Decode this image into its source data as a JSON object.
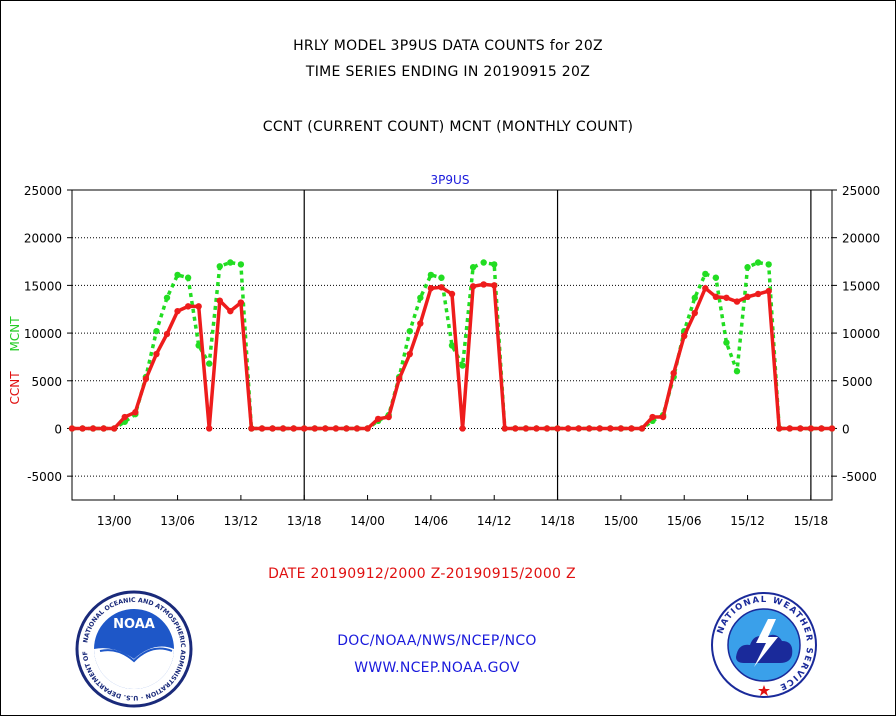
{
  "titles": {
    "line1": "HRLY MODEL 3P9US DATA COUNTS for 20Z",
    "line2": "TIME SERIES ENDING IN 20190915 20Z",
    "line3": "CCNT (CURRENT COUNT) MCNT (MONTHLY COUNT)"
  },
  "footer": {
    "date_range": "DATE 20190912/2000 Z-20190915/2000 Z",
    "doc": "DOC/NOAA/NWS/NCEP/NCO",
    "url": "WWW.NCEP.NOAA.GOV"
  },
  "logos": {
    "noaa": "NOAA",
    "noaa_ring_text": "NATIONAL OCEANIC AND ATMOSPHERIC ADMINISTRATION · U.S. DEPARTMENT OF COMMERCE",
    "nws_ring_text": "NATIONAL WEATHER SERVICE"
  },
  "colors": {
    "ccnt": "#ee1c1c",
    "mcnt": "#22dd22",
    "text_blue": "#1a1adc",
    "text_red": "#e01010"
  },
  "chart_data": {
    "type": "line",
    "title": "3P9US",
    "ylabel_left_1": "CCNT",
    "ylabel_left_2": "MCNT",
    "ylim": [
      -7500,
      25000
    ],
    "yticks": [
      25000,
      20000,
      15000,
      10000,
      5000,
      0,
      -5000
    ],
    "x_tick_labels": [
      "13/00",
      "13/06",
      "13/12",
      "13/18",
      "14/00",
      "14/06",
      "14/12",
      "14/18",
      "15/00",
      "15/06",
      "15/12",
      "15/18"
    ],
    "x_tick_hours": [
      4,
      10,
      16,
      22,
      28,
      34,
      40,
      46,
      52,
      58,
      64,
      70
    ],
    "day_boundaries_hours": [
      22,
      46,
      70
    ],
    "x_range_hours": [
      0,
      72
    ],
    "series": [
      {
        "name": "CCNT",
        "color": "#ee1c1c",
        "style": "solid",
        "x": [
          0,
          1,
          2,
          3,
          4,
          5,
          6,
          7,
          8,
          9,
          10,
          11,
          12,
          13,
          14,
          15,
          16,
          17,
          18,
          19,
          20,
          21,
          22,
          23,
          24,
          25,
          26,
          27,
          28,
          29,
          30,
          31,
          32,
          33,
          34,
          35,
          36,
          37,
          38,
          39,
          40,
          41,
          42,
          43,
          44,
          45,
          46,
          47,
          48,
          49,
          50,
          51,
          52,
          53,
          54,
          55,
          56,
          57,
          58,
          59,
          60,
          61,
          62,
          63,
          64,
          65,
          66,
          67,
          68,
          69,
          70,
          71,
          72
        ],
        "values": [
          0,
          0,
          0,
          0,
          0,
          1200,
          1700,
          5200,
          7800,
          9900,
          12300,
          12800,
          12800,
          0,
          13400,
          12300,
          13200,
          0,
          0,
          0,
          0,
          0,
          0,
          0,
          0,
          0,
          0,
          0,
          0,
          1000,
          1200,
          5200,
          7800,
          11000,
          14700,
          14800,
          14100,
          0,
          14900,
          15100,
          15000,
          0,
          0,
          0,
          0,
          0,
          0,
          0,
          0,
          0,
          0,
          0,
          0,
          0,
          0,
          1200,
          1200,
          5800,
          9700,
          12100,
          14700,
          13800,
          13700,
          13300,
          13800,
          14100,
          14400,
          0,
          0,
          0,
          0,
          0,
          0
        ]
      },
      {
        "name": "MCNT",
        "color": "#22dd22",
        "style": "dotted",
        "x": [
          0,
          1,
          2,
          3,
          4,
          5,
          6,
          7,
          8,
          9,
          10,
          11,
          12,
          13,
          14,
          15,
          16,
          17,
          18,
          19,
          20,
          21,
          22,
          23,
          24,
          25,
          26,
          27,
          28,
          29,
          30,
          31,
          32,
          33,
          34,
          35,
          36,
          37,
          38,
          39,
          40,
          41,
          42,
          43,
          44,
          45,
          46,
          47,
          48,
          49,
          50,
          51,
          52,
          53,
          54,
          55,
          56,
          57,
          58,
          59,
          60,
          61,
          62,
          63,
          64,
          65,
          66,
          67,
          68,
          69,
          70,
          71,
          72
        ],
        "values": [
          0,
          0,
          0,
          0,
          0,
          700,
          1500,
          5400,
          10200,
          13700,
          16100,
          15800,
          8700,
          6800,
          17000,
          17400,
          17200,
          0,
          0,
          0,
          0,
          0,
          0,
          0,
          0,
          0,
          0,
          0,
          0,
          800,
          1400,
          5400,
          10200,
          13700,
          16100,
          15800,
          8700,
          6600,
          16900,
          17400,
          17200,
          0,
          0,
          0,
          0,
          0,
          0,
          0,
          0,
          0,
          0,
          0,
          0,
          0,
          0,
          800,
          1400,
          5400,
          10200,
          13700,
          16200,
          15800,
          9000,
          6000,
          16900,
          17400,
          17200,
          0,
          0,
          0,
          0,
          0,
          0
        ]
      }
    ]
  }
}
